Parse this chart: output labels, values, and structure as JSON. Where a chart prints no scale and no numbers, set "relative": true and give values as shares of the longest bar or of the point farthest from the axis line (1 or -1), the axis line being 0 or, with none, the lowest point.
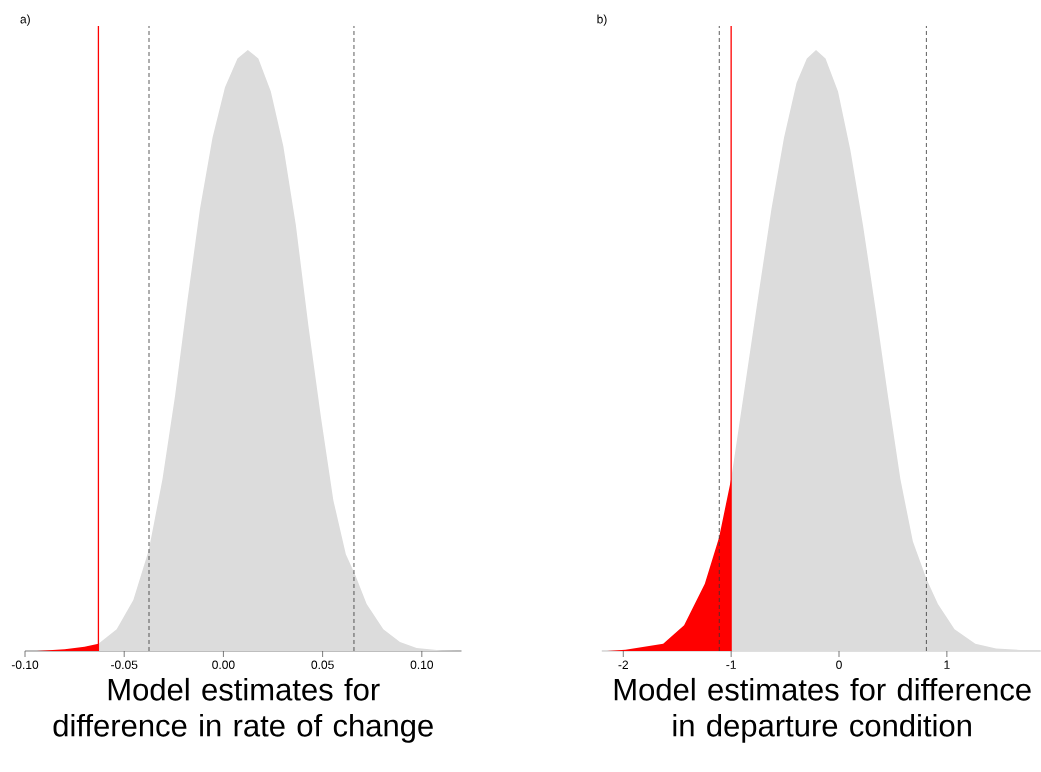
{
  "chart_data": [
    {
      "type": "area",
      "title": "a)",
      "xlabel": "Model estimates for difference in rate of change",
      "relative": true,
      "xlim": [
        -0.1,
        0.12
      ],
      "xticks": [
        {
          "value": -0.1,
          "label": "-0.10"
        },
        {
          "value": -0.05,
          "label": "-0.05"
        },
        {
          "value": 0,
          "label": "0.00"
        },
        {
          "value": 0.05,
          "label": "0.05"
        },
        {
          "value": 0.1,
          "label": "0.10"
        }
      ],
      "series": [
        {
          "color": "#ff0000",
          "x": [
            -0.094,
            -0.08,
            -0.07,
            -0.063
          ],
          "values": [
            0,
            0.003,
            0.007,
            0.012
          ]
        },
        {
          "color": "#dcdcdc",
          "x": [
            -0.063,
            -0.0538,
            -0.0454,
            -0.0376,
            -0.0307,
            -0.0244,
            -0.0181,
            -0.0118,
            -0.0055,
            0.0008,
            0.0071,
            0.0123,
            0.0176,
            0.0239,
            0.0302,
            0.0365,
            0.0428,
            0.0491,
            0.0554,
            0.0617,
            0.0665,
            0.0722,
            0.0806,
            0.089,
            0.0974,
            0.11,
            0.1176
          ],
          "values": [
            0.012,
            0.036,
            0.085,
            0.168,
            0.286,
            0.424,
            0.584,
            0.736,
            0.854,
            0.938,
            0.986,
            1,
            0.986,
            0.931,
            0.84,
            0.709,
            0.542,
            0.39,
            0.251,
            0.161,
            0.126,
            0.078,
            0.036,
            0.015,
            0.005,
            0.001,
            0
          ]
        }
      ],
      "ref_lines": [
        {
          "axis": "x",
          "value": -0.063,
          "color": "#ff0000",
          "line_style": "solid"
        },
        {
          "axis": "x",
          "value": -0.0375,
          "color": "#333333",
          "line_style": "dashed"
        },
        {
          "axis": "x",
          "value": 0.0658,
          "color": "#333333",
          "line_style": "dashed"
        }
      ]
    },
    {
      "type": "area",
      "title": "b)",
      "xlabel": "Model estimates for difference in departure condition",
      "relative": true,
      "xlim": [
        -2.2,
        1.87
      ],
      "xticks": [
        -2,
        -1,
        0,
        1
      ],
      "series": [
        {
          "color": "#ff0000",
          "x": [
            -2.15,
            -1.98,
            -1.63,
            -1.436,
            -1.244,
            -1.112,
            -1.0
          ],
          "values": [
            0,
            0.002,
            0.012,
            0.043,
            0.112,
            0.189,
            0.286
          ]
        },
        {
          "color": "#dcdcdc",
          "x": [
            -1.0,
            -0.857,
            -0.742,
            -0.626,
            -0.51,
            -0.394,
            -0.298,
            -0.213,
            -0.125,
            -0.009,
            0.106,
            0.222,
            0.338,
            0.454,
            0.569,
            0.685,
            0.813,
            0.917,
            1.071,
            1.264,
            1.457,
            1.84
          ],
          "values": [
            0.286,
            0.459,
            0.598,
            0.736,
            0.854,
            0.945,
            0.986,
            1,
            0.986,
            0.931,
            0.833,
            0.709,
            0.57,
            0.424,
            0.286,
            0.182,
            0.119,
            0.078,
            0.036,
            0.012,
            0.004,
            0
          ]
        }
      ],
      "ref_lines": [
        {
          "axis": "x",
          "value": -1.11,
          "color": "#333333",
          "line_style": "dashed"
        },
        {
          "axis": "x",
          "value": -1.0,
          "color": "#ff0000",
          "line_style": "solid"
        },
        {
          "axis": "x",
          "value": 0.81,
          "color": "#333333",
          "line_style": "dashed"
        }
      ]
    }
  ]
}
